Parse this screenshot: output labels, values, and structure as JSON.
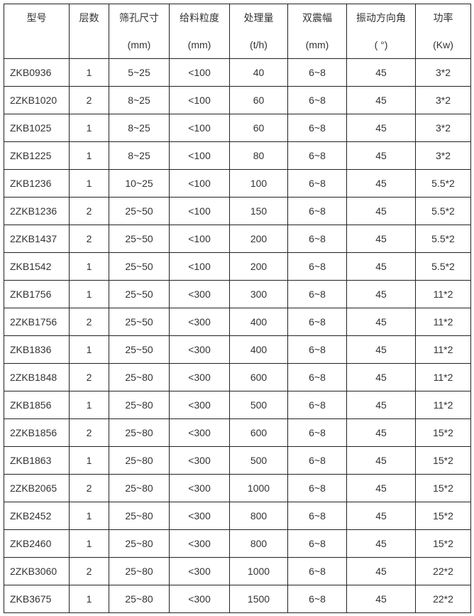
{
  "headers": [
    {
      "name": "型号",
      "unit": ""
    },
    {
      "name": "层数",
      "unit": ""
    },
    {
      "name": "筛孔尺寸",
      "unit": "(mm)"
    },
    {
      "name": "给料粒度",
      "unit": "(mm)"
    },
    {
      "name": "处理量",
      "unit": "(t/h)"
    },
    {
      "name": "双震幅",
      "unit": "(mm)"
    },
    {
      "name": "振动方向角",
      "unit": "( °)"
    },
    {
      "name": "功率",
      "unit": "(Kw)"
    }
  ],
  "rows": [
    [
      "ZKB0936",
      "1",
      "5~25",
      "<100",
      "40",
      "6~8",
      "45",
      "3*2"
    ],
    [
      "2ZKB1020",
      "2",
      "8~25",
      "<100",
      "60",
      "6~8",
      "45",
      "3*2"
    ],
    [
      "ZKB1025",
      "1",
      "8~25",
      "<100",
      "60",
      "6~8",
      "45",
      "3*2"
    ],
    [
      "ZKB1225",
      "1",
      "8~25",
      "<100",
      "80",
      "6~8",
      "45",
      "3*2"
    ],
    [
      "ZKB1236",
      "1",
      "10~25",
      "<100",
      "100",
      "6~8",
      "45",
      "5.5*2"
    ],
    [
      "2ZKB1236",
      "2",
      "25~50",
      "<100",
      "150",
      "6~8",
      "45",
      "5.5*2"
    ],
    [
      "2ZKB1437",
      "2",
      "25~50",
      "<100",
      "200",
      "6~8",
      "45",
      "5.5*2"
    ],
    [
      "ZKB1542",
      "1",
      "25~50",
      "<100",
      "200",
      "6~8",
      "45",
      "5.5*2"
    ],
    [
      "ZKB1756",
      "1",
      "25~50",
      "<300",
      "300",
      "6~8",
      "45",
      "11*2"
    ],
    [
      "2ZKB1756",
      "2",
      "25~50",
      "<300",
      "400",
      "6~8",
      "45",
      "11*2"
    ],
    [
      "ZKB1836",
      "1",
      "25~50",
      "<300",
      "400",
      "6~8",
      "45",
      "11*2"
    ],
    [
      "2ZKB1848",
      "2",
      "25~80",
      "<300",
      "600",
      "6~8",
      "45",
      "11*2"
    ],
    [
      "ZKB1856",
      "1",
      "25~80",
      "<300",
      "500",
      "6~8",
      "45",
      "11*2"
    ],
    [
      "2ZKB1856",
      "2",
      "25~80",
      "<300",
      "600",
      "6~8",
      "45",
      "15*2"
    ],
    [
      "ZKB1863",
      "1",
      "25~80",
      "<300",
      "500",
      "6~8",
      "45",
      "15*2"
    ],
    [
      "2ZKB2065",
      "2",
      "25~80",
      "<300",
      "1000",
      "6~8",
      "45",
      "15*2"
    ],
    [
      "ZKB2452",
      "1",
      "25~80",
      "<300",
      "800",
      "6~8",
      "45",
      "15*2"
    ],
    [
      "ZKB2460",
      "1",
      "25~80",
      "<300",
      "800",
      "6~8",
      "45",
      "15*2"
    ],
    [
      "2ZKB3060",
      "2",
      "25~80",
      "<300",
      "1000",
      "6~8",
      "45",
      "22*2"
    ],
    [
      "ZKB3675",
      "1",
      "25~80",
      "<300",
      "1500",
      "6~8",
      "45",
      "22*2"
    ]
  ]
}
